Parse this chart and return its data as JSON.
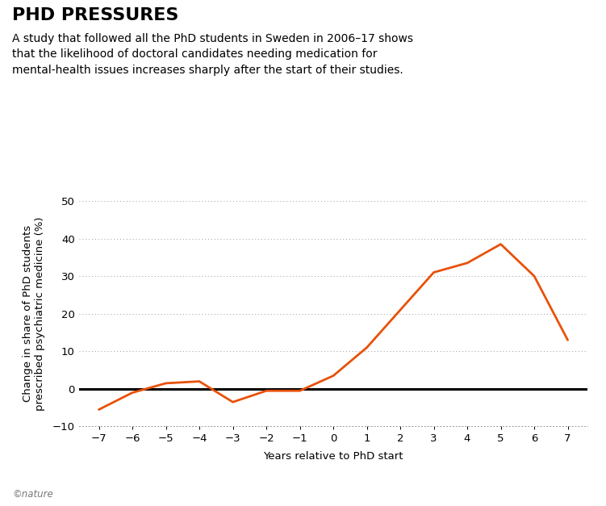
{
  "title": "PHD PRESSURES",
  "subtitle": "A study that followed all the PhD students in Sweden in 2006–17 shows\nthat the likelihood of doctoral candidates needing medication for\nmental-health issues increases sharply after the start of their studies.",
  "xlabel": "Years relative to PhD start",
  "ylabel": "Change in share of PhD students\nprescribed psychiatric medicine (%)",
  "x": [
    -7,
    -6,
    -5,
    -4,
    -3,
    -2,
    -1,
    0,
    1,
    2,
    3,
    4,
    5,
    6,
    7
  ],
  "y": [
    -5.5,
    -1.0,
    1.5,
    2.0,
    -3.5,
    -0.5,
    -0.5,
    3.5,
    11.0,
    21.0,
    31.0,
    33.5,
    38.5,
    30.0,
    13.0
  ],
  "line_color": "#E8510A",
  "zero_line_color": "#000000",
  "ylim": [
    -15,
    55
  ],
  "yticks": [
    -10,
    0,
    10,
    20,
    30,
    40,
    50
  ],
  "xticks": [
    -7,
    -6,
    -5,
    -4,
    -3,
    -2,
    -1,
    0,
    1,
    2,
    3,
    4,
    5,
    6,
    7
  ],
  "grid_color": "#999999",
  "background_color": "#ffffff",
  "title_fontsize": 16,
  "subtitle_fontsize": 10,
  "axis_label_fontsize": 9.5,
  "tick_fontsize": 9.5,
  "nature_text": "©nature",
  "nature_fontsize": 8.5,
  "line_width": 2.0,
  "xlim": [
    -7.6,
    7.6
  ]
}
